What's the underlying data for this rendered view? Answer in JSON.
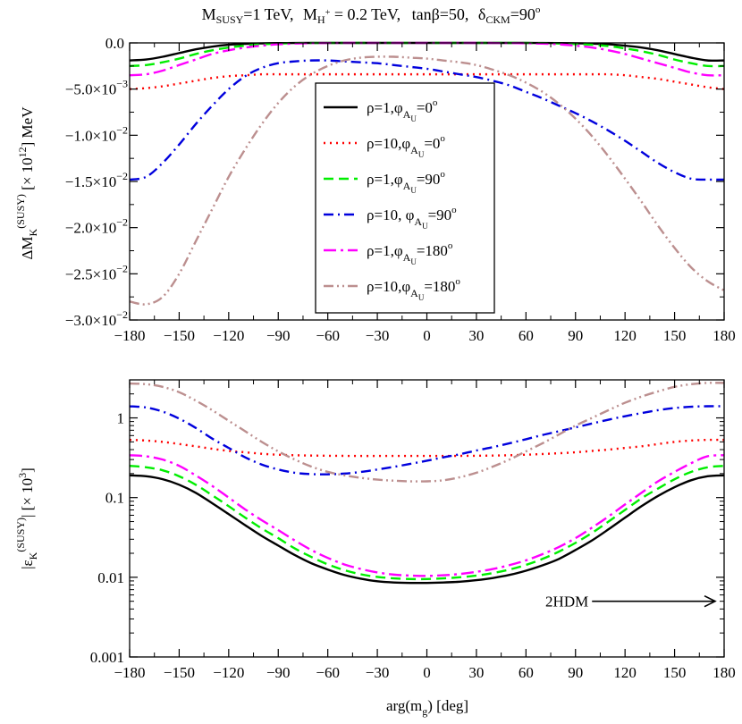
{
  "chart_data": {
    "title": "M_SUSY=1 TeV, M_H+ = 0.2 TeV, tanβ=50, δ_CKM=90°",
    "title_parts": {
      "msusy": "M",
      "msusy_sub": "SUSY",
      "msusy_val": "=1 TeV,",
      "mh": "M",
      "mh_sub": "H",
      "mh_sup": "+",
      "mh_val": " = 0.2 TeV,",
      "tanb": "tanβ=50,",
      "dckm": "δ",
      "dckm_sub": "CKM",
      "dckm_val": "=90",
      "deg": "o"
    },
    "xlabel": "arg(m_g~) [deg]",
    "xlabel_parts": {
      "main": "arg(m",
      "sub": "g",
      "tilde": "~",
      "rest": ")  [deg]"
    },
    "xlim": [
      -180,
      180
    ],
    "xticks": [
      -180,
      -150,
      -120,
      -90,
      -60,
      -30,
      0,
      30,
      60,
      90,
      120,
      150,
      180
    ],
    "xtick_labels": [
      "−180",
      "−150",
      "−120",
      "−90",
      "−60",
      "−30",
      "0",
      "30",
      "60",
      "90",
      "120",
      "150",
      "180"
    ],
    "x": [
      -180,
      -170,
      -160,
      -150,
      -140,
      -130,
      -120,
      -110,
      -100,
      -90,
      -80,
      -70,
      -60,
      -50,
      -40,
      -30,
      -20,
      -10,
      0,
      10,
      20,
      30,
      40,
      50,
      60,
      70,
      80,
      90,
      100,
      110,
      120,
      130,
      140,
      150,
      160,
      170,
      180
    ],
    "legend_position": "upper center (top panel)",
    "series_styles": [
      {
        "name": "ρ=1, φ_AU=0°",
        "color": "#000000",
        "dash": "none",
        "width": 2.4
      },
      {
        "name": "ρ=10, φ_AU=0°",
        "color": "#ff0000",
        "dash": "2 5",
        "width": 2.4
      },
      {
        "name": "ρ=1, φ_AU=90°",
        "color": "#00ee00",
        "dash": "11 6",
        "width": 2.4
      },
      {
        "name": "ρ=10, φ_AU=90°",
        "color": "#0000dd",
        "dash": "11 5 2 5",
        "width": 2.4
      },
      {
        "name": "ρ=1, φ_AU=180°",
        "color": "#ff00ff",
        "dash": "14 5 3 5",
        "width": 2.4
      },
      {
        "name": "ρ=10, φ_AU=180°",
        "color": "#bc8f8f",
        "dash": "11 4 2 4 2 4",
        "width": 2.4
      }
    ],
    "legend": [
      {
        "rho": "ρ=1,",
        "phi": "φ",
        "sub": "A",
        "subsub": "U",
        "val": "=0",
        "deg": "o"
      },
      {
        "rho": "ρ=10,",
        "phi": "φ",
        "sub": "A",
        "subsub": "U",
        "val": "=0",
        "deg": "o"
      },
      {
        "rho": "ρ=1,",
        "phi": "φ",
        "sub": "A",
        "subsub": "U",
        "val": "=90",
        "deg": "o"
      },
      {
        "rho": "ρ=10, ",
        "phi": "φ",
        "sub": "A",
        "subsub": "U",
        "val": "=90",
        "deg": "o"
      },
      {
        "rho": "ρ=1,",
        "phi": "φ",
        "sub": "A",
        "subsub": "U",
        "val": "=180",
        "deg": "o"
      },
      {
        "rho": "ρ=10,",
        "phi": "φ",
        "sub": "A",
        "subsub": "U",
        "val": "=180",
        "deg": "o"
      }
    ],
    "panels": [
      {
        "type": "line",
        "ylabel": "ΔM_K^(SUSY) [×10^12] MeV",
        "ylabel_parts": {
          "a": "ΔM",
          "b": "K",
          "c": "(SUSY)",
          "d": " [× 10",
          "e": "12",
          "f": "]  MeV"
        },
        "ylim": [
          -0.03,
          0.0
        ],
        "yscale": "linear",
        "yticks": [
          {
            "v": 0.0,
            "m": "0.0",
            "e": ""
          },
          {
            "v": -0.005,
            "m": "−5.0×10",
            "e": "−3"
          },
          {
            "v": -0.01,
            "m": "−1.0×10",
            "e": "−2"
          },
          {
            "v": -0.015,
            "m": "−1.5×10",
            "e": "−2"
          },
          {
            "v": -0.02,
            "m": "−2.0×10",
            "e": "−2"
          },
          {
            "v": -0.025,
            "m": "−2.5×10",
            "e": "−2"
          },
          {
            "v": -0.03,
            "m": "−3.0×10",
            "e": "−2"
          }
        ],
        "series": [
          {
            "name": "ρ=1, φ_AU=0°",
            "values": [
              -0.0019,
              -0.0018,
              -0.0015,
              -0.0011,
              -0.0007,
              -0.0004,
              -0.0002,
              -0.0001,
              -5e-05,
              -2e-05,
              -1e-05,
              0,
              0,
              0,
              0,
              0,
              0,
              0,
              0,
              0,
              0,
              0,
              0,
              0,
              0,
              -1e-05,
              -2e-05,
              -4e-05,
              -8e-05,
              -0.00015,
              -0.0003,
              -0.0005,
              -0.0008,
              -0.0012,
              -0.0016,
              -0.0019,
              -0.0019
            ]
          },
          {
            "name": "ρ=10, φ_AU=0°",
            "values": [
              -0.005,
              -0.0049,
              -0.0047,
              -0.0044,
              -0.0041,
              -0.0038,
              -0.0036,
              -0.0035,
              -0.0034,
              -0.0034,
              -0.0034,
              -0.0034,
              -0.0034,
              -0.0034,
              -0.0034,
              -0.0034,
              -0.0034,
              -0.0034,
              -0.0034,
              -0.0034,
              -0.0034,
              -0.0034,
              -0.0034,
              -0.0034,
              -0.0034,
              -0.0034,
              -0.0034,
              -0.0034,
              -0.0034,
              -0.0034,
              -0.0035,
              -0.0037,
              -0.0039,
              -0.0042,
              -0.0045,
              -0.0048,
              -0.005
            ]
          },
          {
            "name": "ρ=1, φ_AU=90°",
            "values": [
              -0.0025,
              -0.0024,
              -0.0021,
              -0.0017,
              -0.0012,
              -0.0008,
              -0.0005,
              -0.0003,
              -0.00015,
              -7e-05,
              -3e-05,
              -1e-05,
              0,
              0,
              0,
              0,
              0,
              0,
              0,
              0,
              0,
              0,
              0,
              0,
              -1e-05,
              -3e-05,
              -6e-05,
              -0.00012,
              -0.0002,
              -0.00035,
              -0.0006,
              -0.0009,
              -0.0013,
              -0.0018,
              -0.0022,
              -0.0025,
              -0.0025
            ]
          },
          {
            "name": "ρ=10, φ_AU=90°",
            "values": [
              -0.0148,
              -0.0145,
              -0.013,
              -0.011,
              -0.0088,
              -0.0068,
              -0.005,
              -0.0036,
              -0.0027,
              -0.0022,
              -0.002,
              -0.0019,
              -0.0019,
              -0.002,
              -0.0021,
              -0.0022,
              -0.0024,
              -0.0026,
              -0.0028,
              -0.0031,
              -0.0034,
              -0.0037,
              -0.0041,
              -0.0046,
              -0.0053,
              -0.006,
              -0.0068,
              -0.0076,
              -0.0085,
              -0.0095,
              -0.0106,
              -0.0118,
              -0.013,
              -0.014,
              -0.0147,
              -0.0148,
              -0.0148
            ]
          },
          {
            "name": "ρ=1, φ_AU=180°",
            "values": [
              -0.0035,
              -0.0034,
              -0.003,
              -0.0024,
              -0.0018,
              -0.0012,
              -0.0008,
              -0.0005,
              -0.0003,
              -0.00015,
              -7e-05,
              -3e-05,
              -1e-05,
              0,
              0,
              0,
              0,
              0,
              0,
              0,
              0,
              0,
              -1e-05,
              -2e-05,
              -4e-05,
              -8e-05,
              -0.00015,
              -0.0003,
              -0.0005,
              -0.0008,
              -0.0012,
              -0.0017,
              -0.0022,
              -0.0027,
              -0.0032,
              -0.0035,
              -0.0035
            ]
          },
          {
            "name": "ρ=10, φ_AU=180°",
            "values": [
              -0.028,
              -0.0283,
              -0.0275,
              -0.025,
              -0.0215,
              -0.018,
              -0.0145,
              -0.0115,
              -0.0088,
              -0.0065,
              -0.0047,
              -0.0034,
              -0.0025,
              -0.0019,
              -0.0016,
              -0.0015,
              -0.0015,
              -0.0016,
              -0.0017,
              -0.0019,
              -0.0021,
              -0.0024,
              -0.0029,
              -0.0035,
              -0.0043,
              -0.0053,
              -0.0066,
              -0.0082,
              -0.0101,
              -0.0123,
              -0.0147,
              -0.0172,
              -0.0198,
              -0.0222,
              -0.0243,
              -0.0258,
              -0.0268
            ]
          }
        ]
      },
      {
        "type": "line",
        "ylabel": "|ε_K^(SUSY)| [×10^3]",
        "ylabel_parts": {
          "a": "|ε",
          "b": "K",
          "c": "(SUSY)",
          "d": "| [× 10",
          "e": "3",
          "f": "]"
        },
        "ylim": [
          0.001,
          3.0
        ],
        "yscale": "log",
        "yticks": [
          {
            "v": 1,
            "m": "1",
            "e": ""
          },
          {
            "v": 0.1,
            "m": "0.1",
            "e": ""
          },
          {
            "v": 0.01,
            "m": "0.01",
            "e": ""
          },
          {
            "v": 0.001,
            "m": "0.001",
            "e": ""
          }
        ],
        "annotation": {
          "text": "2HDM",
          "x_from": 100,
          "x_to": 180,
          "y": 0.005
        },
        "series": [
          {
            "name": "ρ=1, φ_AU=0°",
            "values": [
              0.19,
              0.185,
              0.17,
              0.145,
              0.115,
              0.085,
              0.062,
              0.045,
              0.033,
              0.025,
              0.019,
              0.015,
              0.0125,
              0.0107,
              0.0096,
              0.0089,
              0.0086,
              0.0085,
              0.0085,
              0.0086,
              0.0088,
              0.0092,
              0.0098,
              0.0107,
              0.0121,
              0.0141,
              0.017,
              0.022,
              0.029,
              0.04,
              0.056,
              0.078,
              0.105,
              0.135,
              0.165,
              0.185,
              0.19
            ]
          },
          {
            "name": "ρ=10, φ_AU=0°",
            "values": [
              0.53,
              0.52,
              0.5,
              0.47,
              0.44,
              0.41,
              0.385,
              0.37,
              0.355,
              0.345,
              0.34,
              0.337,
              0.335,
              0.334,
              0.333,
              0.333,
              0.333,
              0.333,
              0.333,
              0.333,
              0.334,
              0.335,
              0.337,
              0.34,
              0.345,
              0.352,
              0.36,
              0.37,
              0.385,
              0.4,
              0.42,
              0.44,
              0.47,
              0.5,
              0.52,
              0.53,
              0.53
            ]
          },
          {
            "name": "ρ=1, φ_AU=90°",
            "values": [
              0.25,
              0.24,
              0.22,
              0.185,
              0.145,
              0.107,
              0.078,
              0.056,
              0.041,
              0.031,
              0.023,
              0.018,
              0.0145,
              0.0123,
              0.0109,
              0.0101,
              0.0097,
              0.0095,
              0.0095,
              0.0097,
              0.01,
              0.0105,
              0.0113,
              0.0125,
              0.0143,
              0.017,
              0.021,
              0.027,
              0.036,
              0.05,
              0.07,
              0.098,
              0.13,
              0.17,
              0.21,
              0.24,
              0.25
            ]
          },
          {
            "name": "ρ=10, φ_AU=90°",
            "values": [
              1.4,
              1.35,
              1.2,
              0.98,
              0.75,
              0.55,
              0.42,
              0.32,
              0.26,
              0.225,
              0.205,
              0.197,
              0.196,
              0.2,
              0.21,
              0.225,
              0.243,
              0.265,
              0.29,
              0.32,
              0.35,
              0.39,
              0.43,
              0.48,
              0.54,
              0.61,
              0.68,
              0.76,
              0.85,
              0.95,
              1.05,
              1.15,
              1.25,
              1.33,
              1.38,
              1.4,
              1.4
            ]
          },
          {
            "name": "ρ=1, φ_AU=180°",
            "values": [
              0.34,
              0.33,
              0.3,
              0.25,
              0.19,
              0.14,
              0.1,
              0.071,
              0.052,
              0.039,
              0.029,
              0.022,
              0.0175,
              0.0145,
              0.0127,
              0.0115,
              0.0108,
              0.0105,
              0.0104,
              0.0106,
              0.011,
              0.0117,
              0.0127,
              0.0142,
              0.0163,
              0.0195,
              0.024,
              0.031,
              0.042,
              0.058,
              0.082,
              0.115,
              0.16,
              0.21,
              0.27,
              0.33,
              0.34
            ]
          },
          {
            "name": "ρ=10, φ_AU=180°",
            "values": [
              2.7,
              2.65,
              2.45,
              2.1,
              1.65,
              1.25,
              0.92,
              0.68,
              0.5,
              0.38,
              0.3,
              0.245,
              0.21,
              0.19,
              0.177,
              0.168,
              0.163,
              0.16,
              0.16,
              0.165,
              0.18,
              0.205,
              0.245,
              0.3,
              0.38,
              0.48,
              0.62,
              0.8,
              1.0,
              1.25,
              1.55,
              1.85,
              2.15,
              2.45,
              2.65,
              2.75,
              2.75
            ]
          }
        ]
      }
    ]
  }
}
